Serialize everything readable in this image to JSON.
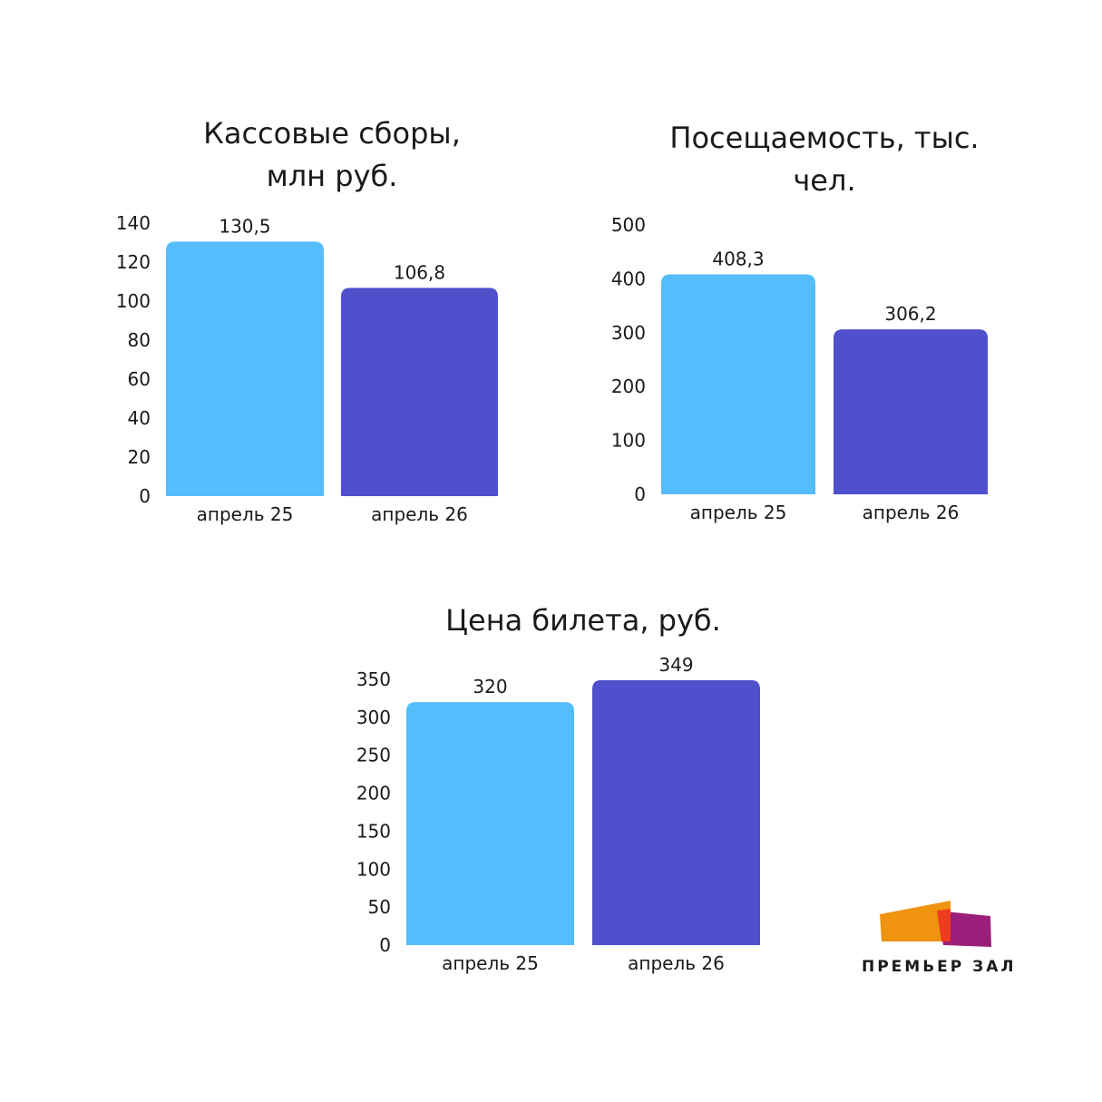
{
  "chart_data": [
    {
      "type": "bar",
      "title": "Кассовые сборы,\nмлн руб.",
      "categories": [
        "апрель 25",
        "апрель 26"
      ],
      "values": [
        130.5,
        106.8
      ],
      "value_labels": [
        "130,5",
        "106,8"
      ],
      "colors": [
        "#55bdfb",
        "#5050cc"
      ],
      "ylim": [
        0,
        140
      ],
      "yticks": [
        0,
        20,
        40,
        60,
        80,
        100,
        120,
        140
      ],
      "grid": false,
      "xlabel": "",
      "ylabel": ""
    },
    {
      "type": "bar",
      "title": "Посещаемость, тыс.\nчел.",
      "categories": [
        "апрель 25",
        "апрель 26"
      ],
      "values": [
        408.3,
        306.2
      ],
      "value_labels": [
        "408,3",
        "306,2"
      ],
      "colors": [
        "#55bdfb",
        "#5050cc"
      ],
      "ylim": [
        0,
        500
      ],
      "yticks": [
        0,
        100,
        200,
        300,
        400,
        500
      ],
      "grid": false,
      "xlabel": "",
      "ylabel": ""
    },
    {
      "type": "bar",
      "title": "Цена билета, руб.",
      "categories": [
        "апрель 25",
        "апрель 26"
      ],
      "values": [
        320,
        349
      ],
      "value_labels": [
        "320",
        "349"
      ],
      "colors": [
        "#55bdfb",
        "#5050cc"
      ],
      "ylim": [
        0,
        350
      ],
      "yticks": [
        0,
        50,
        100,
        150,
        200,
        250,
        300,
        350
      ],
      "grid": false,
      "xlabel": "",
      "ylabel": ""
    }
  ],
  "logo": {
    "text": "ПРЕМЬЕР ЗАЛ"
  }
}
